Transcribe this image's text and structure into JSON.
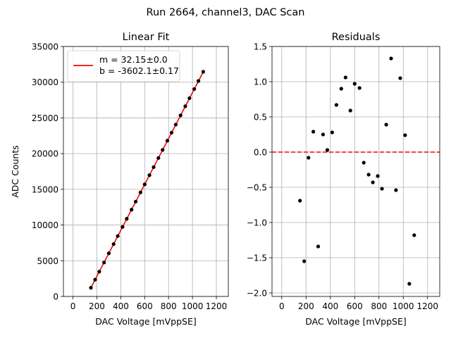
{
  "figure": {
    "suptitle": "Run 2664, channel3, DAC Scan"
  },
  "chart_data": [
    {
      "type": "scatter",
      "title": "Linear Fit",
      "xlabel": "DAC Voltage [mVppSE]",
      "ylabel": "ADC Counts",
      "xlim": [
        -80,
        1300
      ],
      "ylim": [
        0,
        35000
      ],
      "xticks": [
        0,
        200,
        400,
        600,
        800,
        1000,
        1200
      ],
      "xtick_labels": [
        "0",
        "200",
        "400",
        "600",
        "800",
        "1000",
        "1200"
      ],
      "yticks": [
        0,
        5000,
        10000,
        15000,
        20000,
        25000,
        30000,
        35000
      ],
      "ytick_labels": [
        "0",
        "5000",
        "10000",
        "15000",
        "20000",
        "25000",
        "30000",
        "35000"
      ],
      "grid": true,
      "legend": {
        "placement": "top-left",
        "entries": [
          "m = 32.15±0.0",
          "b = -3602.1±0.17"
        ],
        "line_color": "#ff0000"
      },
      "series": [
        {
          "kind": "points",
          "color": "#000000",
          "x": [
            150,
            185,
            220,
            260,
            300,
            340,
            375,
            415,
            450,
            490,
            525,
            565,
            600,
            640,
            675,
            715,
            750,
            790,
            825,
            860,
            900,
            940,
            975,
            1015,
            1050,
            1090
          ],
          "y": [
            1220,
            2350,
            3470,
            4750,
            6040,
            7330,
            8460,
            9740,
            10870,
            12150,
            13280,
            14570,
            15690,
            16980,
            18110,
            19390,
            20520,
            21810,
            22930,
            24060,
            25350,
            26630,
            27760,
            29040,
            30170,
            31460
          ]
        },
        {
          "kind": "fit-line",
          "color": "#ff0000",
          "x": [
            150,
            1090
          ],
          "y": [
            1220.4,
            31441.4
          ]
        }
      ]
    },
    {
      "type": "scatter",
      "title": "Residuals",
      "xlabel": "DAC Voltage [mVppSE]",
      "ylabel": "",
      "xlim": [
        -80,
        1300
      ],
      "ylim": [
        -2.05,
        1.5
      ],
      "xticks": [
        0,
        200,
        400,
        600,
        800,
        1000,
        1200
      ],
      "xtick_labels": [
        "0",
        "200",
        "400",
        "600",
        "800",
        "1000",
        "1200"
      ],
      "yticks": [
        -2.0,
        -1.5,
        -1.0,
        -0.5,
        0.0,
        0.5,
        1.0,
        1.5
      ],
      "ytick_labels": [
        "−2.0",
        "−1.5",
        "−1.0",
        "−0.5",
        "0.0",
        "0.5",
        "1.0",
        "1.5"
      ],
      "grid": true,
      "zero_line_color": "#ff0000",
      "series": [
        {
          "kind": "points",
          "color": "#000000",
          "x": [
            150,
            185,
            220,
            260,
            300,
            340,
            375,
            415,
            450,
            490,
            525,
            565,
            600,
            640,
            675,
            715,
            750,
            790,
            825,
            860,
            900,
            940,
            975,
            1015,
            1050,
            1090
          ],
          "y": [
            -0.69,
            -1.55,
            -0.08,
            0.29,
            -1.34,
            0.25,
            0.03,
            0.28,
            0.67,
            0.9,
            1.06,
            0.59,
            0.97,
            0.91,
            -0.15,
            -0.32,
            -0.43,
            -0.34,
            -0.52,
            0.39,
            1.33,
            -0.54,
            1.05,
            0.24,
            -1.87,
            -1.18
          ]
        }
      ]
    }
  ]
}
